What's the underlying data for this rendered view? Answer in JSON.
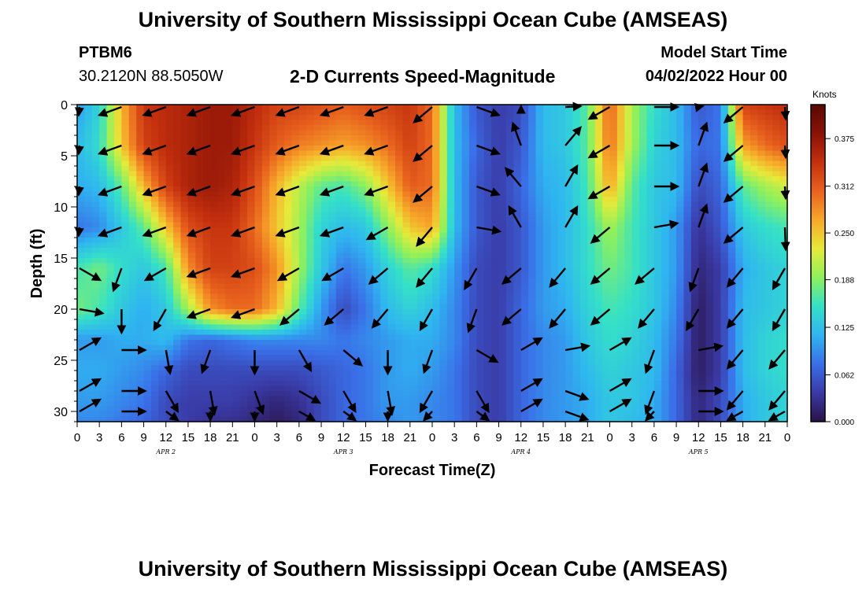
{
  "header": {
    "title": "University of Southern Mississippi Ocean Cube (AMSEAS)",
    "station_id": "PTBM6",
    "station_coords": "30.2120N  88.5050W",
    "subtitle": "2-D Currents Speed-Magnitude",
    "model_start_label": "Model Start Time",
    "model_start_value": "04/02/2022 Hour 00"
  },
  "footer": {
    "title": "University of Southern Mississippi Ocean Cube (AMSEAS)"
  },
  "chart_data": {
    "type": "heatmap",
    "xlabel": "Forecast Time(Z)",
    "ylabel": "Depth (ft)",
    "x_range_hours": [
      0,
      96
    ],
    "x_tick_step_hours": 3,
    "x_tick_labels": [
      "0",
      "3",
      "6",
      "9",
      "12",
      "15",
      "18",
      "21",
      "0",
      "3",
      "6",
      "9",
      "12",
      "15",
      "18",
      "21",
      "0",
      "3",
      "6",
      "9",
      "12",
      "15",
      "18",
      "21",
      "0",
      "3",
      "6",
      "9",
      "12",
      "15",
      "18",
      "21",
      "0"
    ],
    "date_labels": [
      {
        "hour": 12,
        "text": "APR 2"
      },
      {
        "hour": 36,
        "text": "APR 3"
      },
      {
        "hour": 60,
        "text": "APR 4"
      },
      {
        "hour": 84,
        "text": "APR 5"
      }
    ],
    "ylim": [
      0,
      31
    ],
    "y_ticks": [
      0,
      5,
      10,
      15,
      20,
      25,
      30
    ],
    "y_inverted": true,
    "colorbar": {
      "label": "Knots",
      "min": 0.0,
      "max": 0.42,
      "ticks": [
        "0.000",
        "0.062",
        "0.125",
        "0.188",
        "0.250",
        "0.312",
        "0.375"
      ],
      "colors": [
        "#2a1246",
        "#3a3aa6",
        "#3a6fe8",
        "#2fb5f0",
        "#34e0c8",
        "#8ef05c",
        "#e6ea3a",
        "#f7a82a",
        "#e8621e",
        "#c4300e",
        "#8a1206",
        "#5a0804"
      ]
    },
    "speed_hours": [
      0,
      3,
      6,
      9,
      12,
      15,
      18,
      21,
      24,
      27,
      30,
      33,
      36,
      39,
      42,
      45,
      48,
      51,
      54,
      57,
      60,
      63,
      66,
      69,
      72,
      75,
      78,
      81,
      84,
      87,
      90,
      93,
      96
    ],
    "speed_depths": [
      0,
      4,
      8,
      12,
      16,
      20,
      23,
      26,
      29,
      31
    ],
    "speed_knots": [
      [
        0.1,
        0.14,
        0.26,
        0.34,
        0.35,
        0.36,
        0.37,
        0.37,
        0.35,
        0.33,
        0.33,
        0.32,
        0.31,
        0.32,
        0.33,
        0.34,
        0.3,
        0.12,
        0.06,
        0.04,
        0.05,
        0.12,
        0.13,
        0.17,
        0.31,
        0.2,
        0.15,
        0.12,
        0.06,
        0.08,
        0.33,
        0.34,
        0.35
      ],
      [
        0.12,
        0.15,
        0.25,
        0.33,
        0.35,
        0.36,
        0.37,
        0.37,
        0.34,
        0.31,
        0.29,
        0.28,
        0.27,
        0.28,
        0.3,
        0.33,
        0.3,
        0.12,
        0.07,
        0.04,
        0.06,
        0.12,
        0.13,
        0.17,
        0.3,
        0.2,
        0.14,
        0.12,
        0.07,
        0.08,
        0.27,
        0.3,
        0.32
      ],
      [
        0.11,
        0.12,
        0.17,
        0.26,
        0.33,
        0.36,
        0.37,
        0.36,
        0.32,
        0.26,
        0.21,
        0.17,
        0.16,
        0.19,
        0.25,
        0.31,
        0.3,
        0.12,
        0.06,
        0.04,
        0.07,
        0.11,
        0.12,
        0.16,
        0.27,
        0.17,
        0.13,
        0.12,
        0.05,
        0.07,
        0.17,
        0.2,
        0.22
      ],
      [
        0.08,
        0.09,
        0.13,
        0.17,
        0.25,
        0.32,
        0.34,
        0.34,
        0.3,
        0.25,
        0.2,
        0.14,
        0.12,
        0.13,
        0.19,
        0.25,
        0.27,
        0.12,
        0.06,
        0.04,
        0.06,
        0.1,
        0.12,
        0.15,
        0.2,
        0.16,
        0.13,
        0.1,
        0.03,
        0.06,
        0.13,
        0.15,
        0.16
      ],
      [
        0.16,
        0.18,
        0.15,
        0.13,
        0.16,
        0.28,
        0.33,
        0.33,
        0.32,
        0.28,
        0.2,
        0.13,
        0.08,
        0.1,
        0.14,
        0.17,
        0.15,
        0.1,
        0.05,
        0.04,
        0.06,
        0.1,
        0.12,
        0.15,
        0.18,
        0.16,
        0.13,
        0.1,
        0.02,
        0.04,
        0.11,
        0.13,
        0.14
      ],
      [
        0.18,
        0.16,
        0.13,
        0.11,
        0.13,
        0.2,
        0.28,
        0.3,
        0.3,
        0.26,
        0.17,
        0.1,
        0.05,
        0.08,
        0.12,
        0.14,
        0.12,
        0.09,
        0.05,
        0.04,
        0.07,
        0.1,
        0.11,
        0.14,
        0.16,
        0.15,
        0.13,
        0.09,
        0.01,
        0.04,
        0.12,
        0.13,
        0.14
      ],
      [
        0.1,
        0.1,
        0.11,
        0.11,
        0.12,
        0.08,
        0.07,
        0.08,
        0.09,
        0.09,
        0.09,
        0.09,
        0.08,
        0.09,
        0.1,
        0.11,
        0.11,
        0.09,
        0.05,
        0.04,
        0.07,
        0.09,
        0.1,
        0.13,
        0.15,
        0.14,
        0.12,
        0.08,
        0.01,
        0.04,
        0.12,
        0.14,
        0.15
      ],
      [
        0.11,
        0.11,
        0.1,
        0.09,
        0.07,
        0.05,
        0.05,
        0.05,
        0.05,
        0.05,
        0.05,
        0.06,
        0.07,
        0.08,
        0.1,
        0.11,
        0.1,
        0.08,
        0.05,
        0.04,
        0.07,
        0.09,
        0.1,
        0.12,
        0.14,
        0.13,
        0.12,
        0.07,
        0.01,
        0.04,
        0.12,
        0.14,
        0.15
      ],
      [
        0.1,
        0.1,
        0.09,
        0.08,
        0.05,
        0.04,
        0.04,
        0.04,
        0.03,
        0.02,
        0.03,
        0.05,
        0.07,
        0.08,
        0.1,
        0.1,
        0.09,
        0.08,
        0.05,
        0.04,
        0.07,
        0.09,
        0.1,
        0.11,
        0.13,
        0.13,
        0.11,
        0.07,
        0.02,
        0.05,
        0.11,
        0.13,
        0.14
      ],
      [
        0.09,
        0.09,
        0.08,
        0.07,
        0.05,
        0.04,
        0.03,
        0.03,
        0.02,
        0.01,
        0.02,
        0.05,
        0.07,
        0.08,
        0.09,
        0.1,
        0.09,
        0.08,
        0.05,
        0.04,
        0.07,
        0.09,
        0.1,
        0.11,
        0.13,
        0.12,
        0.11,
        0.07,
        0.02,
        0.05,
        0.11,
        0.13,
        0.14
      ]
    ],
    "vector_hours": [
      0,
      6,
      12,
      18,
      24,
      30,
      36,
      42,
      48,
      54,
      60,
      66,
      72,
      78,
      84,
      90,
      96
    ],
    "vector_depths": [
      0,
      4,
      8,
      12,
      16,
      20,
      24,
      28,
      30
    ],
    "vector_dir_deg": [
      [
        250,
        250,
        250,
        250,
        250,
        250,
        250,
        250,
        230,
        110,
        0,
        40,
        240,
        90,
        10,
        230,
        120
      ],
      [
        250,
        250,
        250,
        250,
        250,
        250,
        250,
        250,
        230,
        110,
        340,
        40,
        240,
        90,
        20,
        230,
        120
      ],
      [
        250,
        250,
        250,
        250,
        250,
        250,
        250,
        250,
        230,
        110,
        320,
        30,
        240,
        90,
        20,
        230,
        120
      ],
      [
        250,
        250,
        250,
        250,
        250,
        250,
        250,
        240,
        220,
        100,
        330,
        30,
        230,
        80,
        20,
        230,
        160
      ],
      [
        120,
        200,
        240,
        250,
        250,
        240,
        240,
        230,
        220,
        210,
        230,
        220,
        230,
        230,
        200,
        220,
        210
      ],
      [
        100,
        180,
        210,
        250,
        250,
        230,
        230,
        220,
        210,
        200,
        230,
        220,
        230,
        220,
        210,
        220,
        210
      ],
      [
        60,
        90,
        170,
        200,
        180,
        150,
        130,
        180,
        200,
        120,
        60,
        80,
        60,
        200,
        80,
        220,
        220
      ],
      [
        60,
        90,
        150,
        170,
        160,
        120,
        150,
        170,
        210,
        150,
        60,
        110,
        60,
        200,
        90,
        220,
        220
      ],
      [
        60,
        90,
        150,
        180,
        180,
        140,
        150,
        180,
        200,
        150,
        60,
        110,
        60,
        200,
        90,
        220,
        220
      ]
    ]
  }
}
